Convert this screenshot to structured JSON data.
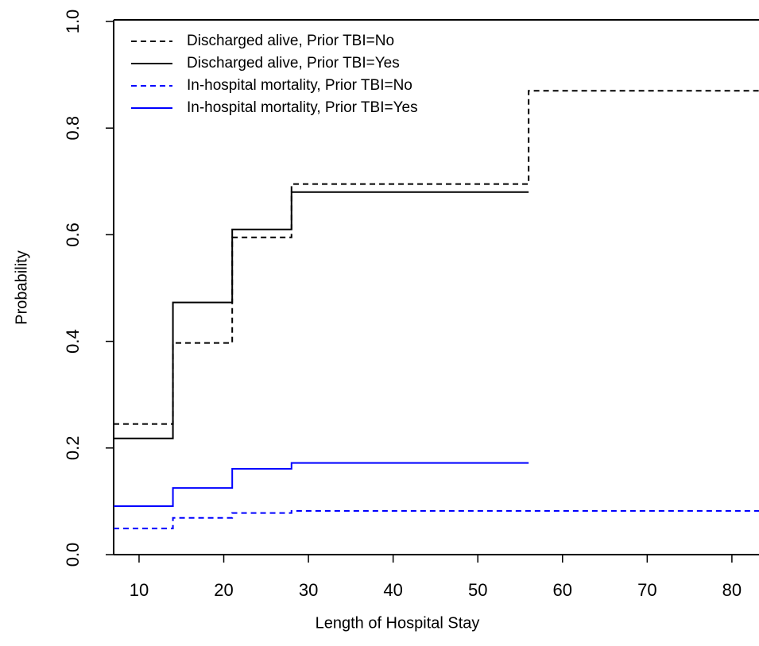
{
  "chart_data": {
    "type": "step",
    "xlabel": "Length of Hospital Stay",
    "ylabel": "Probability",
    "xlim": [
      7,
      83.2
    ],
    "ylim": [
      0,
      1
    ],
    "xticks": [
      10,
      20,
      30,
      40,
      50,
      60,
      70,
      80
    ],
    "yticks": [
      {
        "value": 0,
        "label": "0.0"
      },
      {
        "value": 0.2,
        "label": "0.2"
      },
      {
        "value": 0.4,
        "label": "0.4"
      },
      {
        "value": 0.6,
        "label": "0.6"
      },
      {
        "value": 0.8,
        "label": "0.8"
      },
      {
        "value": 1,
        "label": "1.0"
      }
    ],
    "legend": "top-left",
    "series": [
      {
        "name": "Discharged alive, Prior TBI=No",
        "color": "#000000",
        "dash": true,
        "x": [
          7,
          14,
          21,
          28,
          56,
          83.2
        ],
        "values": [
          0.245,
          0.397,
          0.595,
          0.695,
          0.87,
          0.87
        ]
      },
      {
        "name": "Discharged alive, Prior TBI=Yes",
        "color": "#000000",
        "dash": false,
        "x": [
          7,
          14,
          21,
          28,
          56
        ],
        "values": [
          0.218,
          0.473,
          0.61,
          0.68,
          0.68
        ]
      },
      {
        "name": "In-hospital mortality, Prior TBI=No",
        "color": "#0000ff",
        "dash": true,
        "x": [
          7,
          14,
          21,
          28,
          56,
          83.2
        ],
        "values": [
          0.049,
          0.069,
          0.078,
          0.082,
          0.082,
          0.082
        ]
      },
      {
        "name": "In-hospital mortality, Prior TBI=Yes",
        "color": "#0000ff",
        "dash": false,
        "x": [
          7,
          14,
          21,
          28,
          56
        ],
        "values": [
          0.091,
          0.125,
          0.161,
          0.172,
          0.172
        ]
      }
    ]
  }
}
